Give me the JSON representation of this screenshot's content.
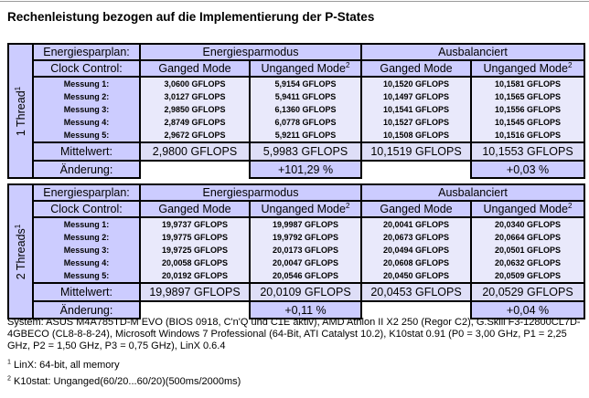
{
  "page": {
    "title": "Rechenleistung bezogen auf die Implementierung der P-States"
  },
  "colors": {
    "header_bg": "#ccccff",
    "measurement_cell_bg": "#e9e9fb",
    "mittelwert_cell_bg": "#dedef7",
    "aenderung_cell_bg": "#ccccff",
    "border": "#000000",
    "page_bg": "#ffffff"
  },
  "tables": [
    {
      "side_label": {
        "text": "1 Thread",
        "sup": "1"
      },
      "header": {
        "plan_label": "Energiesparplan:",
        "plan_groups": [
          "Energiesparmodus",
          "Ausbalanciert"
        ],
        "clock_label": "Clock Control:",
        "clock_cols": [
          {
            "text": "Ganged Mode",
            "sup": ""
          },
          {
            "text": "Unganged Mode",
            "sup": "2"
          },
          {
            "text": "Ganged Mode",
            "sup": ""
          },
          {
            "text": "Unganged Mode",
            "sup": "2"
          }
        ]
      },
      "measurements": [
        {
          "label": "Messung 1:",
          "values": [
            "3,0600 GFLOPS",
            "5,9154 GFLOPS",
            "10,1520 GFLOPS",
            "10,1581 GFLOPS"
          ]
        },
        {
          "label": "Messung 2:",
          "values": [
            "3,0127 GFLOPS",
            "5,9411 GFLOPS",
            "10,1497 GFLOPS",
            "10,1565 GFLOPS"
          ]
        },
        {
          "label": "Messung 3:",
          "values": [
            "2,9850 GFLOPS",
            "6,1360 GFLOPS",
            "10,1541 GFLOPS",
            "10,1556 GFLOPS"
          ]
        },
        {
          "label": "Messung 4:",
          "values": [
            "2,8749 GFLOPS",
            "6,0778 GFLOPS",
            "10,1527 GFLOPS",
            "10,1545 GFLOPS"
          ]
        },
        {
          "label": "Messung 5:",
          "values": [
            "2,9672 GFLOPS",
            "5,9211 GFLOPS",
            "10,1508 GFLOPS",
            "10,1516 GFLOPS"
          ]
        }
      ],
      "mittelwert": {
        "label": "Mittelwert:",
        "values": [
          "2,9800 GFLOPS",
          "5,9983 GFLOPS",
          "10,1519 GFLOPS",
          "10,1553 GFLOPS"
        ]
      },
      "aenderung": {
        "label": "Änderung:",
        "values": [
          "",
          "+101,29 %",
          "",
          "+0,03 %"
        ]
      }
    },
    {
      "side_label": {
        "text": "2 Threads",
        "sup": "1"
      },
      "header": {
        "plan_label": "Energiesparplan:",
        "plan_groups": [
          "Energiesparmodus",
          "Ausbalanciert"
        ],
        "clock_label": "Clock Control:",
        "clock_cols": [
          {
            "text": "Ganged Mode",
            "sup": ""
          },
          {
            "text": "Unganged Mode",
            "sup": "2"
          },
          {
            "text": "Ganged Mode",
            "sup": ""
          },
          {
            "text": "Unganged Mode",
            "sup": "2"
          }
        ]
      },
      "measurements": [
        {
          "label": "Messung 1:",
          "values": [
            "19,9737 GFLOPS",
            "19,9987 GFLOPS",
            "20,0041 GFLOPS",
            "20,0340 GFLOPS"
          ]
        },
        {
          "label": "Messung 2:",
          "values": [
            "19,9775 GFLOPS",
            "19,9792 GFLOPS",
            "20,0673 GFLOPS",
            "20,0664 GFLOPS"
          ]
        },
        {
          "label": "Messung 3:",
          "values": [
            "19,9725 GFLOPS",
            "20,0173 GFLOPS",
            "20,0494 GFLOPS",
            "20,0501 GFLOPS"
          ]
        },
        {
          "label": "Messung 4:",
          "values": [
            "20,0058 GFLOPS",
            "20,0047 GFLOPS",
            "20,0608 GFLOPS",
            "20,0632 GFLOPS"
          ]
        },
        {
          "label": "Messung 5:",
          "values": [
            "20,0192 GFLOPS",
            "20,0546 GFLOPS",
            "20,0450 GFLOPS",
            "20,0509 GFLOPS"
          ]
        }
      ],
      "mittelwert": {
        "label": "Mittelwert:",
        "values": [
          "19,9897 GFLOPS",
          "20,0109 GFLOPS",
          "20,0453 GFLOPS",
          "20,0529 GFLOPS"
        ]
      },
      "aenderung": {
        "label": "Änderung:",
        "values": [
          "",
          "+0,11 %",
          "",
          "+0,04 %"
        ]
      }
    }
  ],
  "footer": {
    "system_line": "System: ASUS M4A785TD-M EVO (BIOS 0918, C'n'Q und C1E aktiv), AMD Athlon II X2 250 (Regor C2), G.Skill F3-12800CL7D-4GBECO (CL8-8-8-24), Microsoft Windows 7 Professional (64-Bit, ATI Catalyst 10.2), K10stat 0.91 (P0 = 3,00 GHz, P1 = 2,25 GHz, P2 = 1,50 GHz, P3 = 0,75 GHz), LinX 0.6.4"
  },
  "footnotes": [
    {
      "marker": "1",
      "text": "LinX: 64-bit, all memory"
    },
    {
      "marker": "2",
      "text": "K10stat: Unganged(60/20...60/20)(500ms/2000ms)"
    }
  ]
}
